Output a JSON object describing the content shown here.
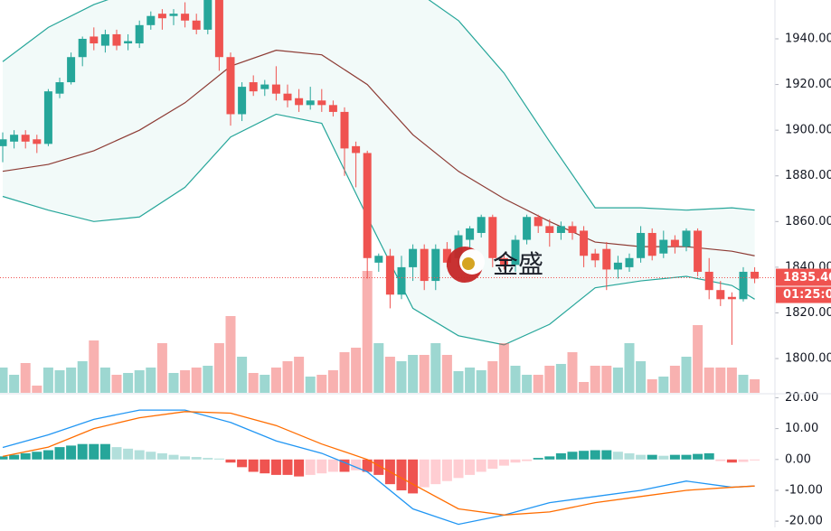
{
  "chart_data": {
    "type": "candlestick",
    "candles": [
      [
        1893,
        1899,
        1886,
        1896
      ],
      [
        1895,
        1900,
        1892,
        1898
      ],
      [
        1898,
        1900,
        1892,
        1895
      ],
      [
        1896,
        1898,
        1890,
        1894
      ],
      [
        1894,
        1918,
        1893,
        1917
      ],
      [
        1916,
        1923,
        1914,
        1921
      ],
      [
        1921,
        1934,
        1920,
        1932
      ],
      [
        1932,
        1941,
        1928,
        1940
      ],
      [
        1941,
        1945,
        1935,
        1938
      ],
      [
        1937,
        1944,
        1934,
        1942
      ],
      [
        1942,
        1944,
        1935,
        1937
      ],
      [
        1938,
        1942,
        1935,
        1939
      ],
      [
        1938,
        1948,
        1936,
        1946
      ],
      [
        1946,
        1952,
        1944,
        1950
      ],
      [
        1951,
        1953,
        1944,
        1949
      ],
      [
        1950,
        1953,
        1946,
        1951
      ],
      [
        1951,
        1956,
        1945,
        1948
      ],
      [
        1948,
        1951,
        1942,
        1944
      ],
      [
        1944,
        1957,
        1942,
        1957
      ],
      [
        1957,
        1957,
        1926,
        1932
      ],
      [
        1932,
        1934,
        1902,
        1907
      ],
      [
        1907,
        1921,
        1904,
        1919
      ],
      [
        1921,
        1924,
        1915,
        1917
      ],
      [
        1918,
        1922,
        1915,
        1920
      ],
      [
        1920,
        1928,
        1913,
        1916
      ],
      [
        1916,
        1920,
        1910,
        1913
      ],
      [
        1914,
        1918,
        1908,
        1911
      ],
      [
        1911,
        1919,
        1909,
        1913
      ],
      [
        1913,
        1918,
        1908,
        1911
      ],
      [
        1911,
        1913,
        1906,
        1908
      ],
      [
        1908,
        1910,
        1880,
        1892
      ],
      [
        1893,
        1895,
        1875,
        1890
      ],
      [
        1890,
        1891,
        1835,
        1844
      ],
      [
        1842,
        1846,
        1838,
        1845
      ],
      [
        1845,
        1848,
        1822,
        1828
      ],
      [
        1828,
        1845,
        1826,
        1840
      ],
      [
        1840,
        1850,
        1834,
        1848
      ],
      [
        1848,
        1850,
        1830,
        1834
      ],
      [
        1834,
        1850,
        1830,
        1848
      ],
      [
        1848,
        1851,
        1840,
        1842
      ],
      [
        1844,
        1856,
        1840,
        1854
      ],
      [
        1852,
        1858,
        1848,
        1857
      ],
      [
        1855,
        1863,
        1853,
        1862
      ],
      [
        1862,
        1863,
        1840,
        1844
      ],
      [
        1844,
        1846,
        1839,
        1841
      ],
      [
        1841,
        1854,
        1838,
        1852
      ],
      [
        1852,
        1863,
        1850,
        1862
      ],
      [
        1862,
        1863,
        1855,
        1858
      ],
      [
        1858,
        1861,
        1849,
        1855
      ],
      [
        1855,
        1860,
        1852,
        1858
      ],
      [
        1858,
        1860,
        1852,
        1855
      ],
      [
        1856,
        1858,
        1840,
        1845
      ],
      [
        1846,
        1848,
        1840,
        1843
      ],
      [
        1848,
        1851,
        1830,
        1839
      ],
      [
        1839,
        1845,
        1835,
        1842
      ],
      [
        1840,
        1846,
        1838,
        1844
      ],
      [
        1844,
        1858,
        1842,
        1855
      ],
      [
        1855,
        1857,
        1843,
        1845
      ],
      [
        1846,
        1856,
        1844,
        1852
      ],
      [
        1852,
        1854,
        1846,
        1849
      ],
      [
        1849,
        1857,
        1847,
        1856
      ],
      [
        1856,
        1857,
        1836,
        1838
      ],
      [
        1838,
        1844,
        1826,
        1830
      ],
      [
        1830,
        1834,
        1823,
        1826
      ],
      [
        1827,
        1829,
        1806,
        1826
      ],
      [
        1826,
        1840,
        1825,
        1838
      ],
      [
        1838,
        1840,
        1833,
        1835
      ]
    ],
    "volume": [
      28,
      20,
      33,
      8,
      28,
      25,
      28,
      35,
      58,
      28,
      20,
      22,
      25,
      28,
      55,
      22,
      25,
      28,
      30,
      55,
      85,
      40,
      22,
      20,
      28,
      35,
      40,
      18,
      20,
      25,
      45,
      50,
      135,
      55,
      40,
      35,
      42,
      42,
      55,
      42,
      24,
      28,
      25,
      35,
      55,
      30,
      20,
      20,
      30,
      32,
      45,
      12,
      30,
      30,
      28,
      55,
      35,
      15,
      18,
      30,
      40,
      75,
      28,
      28,
      28,
      20,
      15
    ],
    "bands": {
      "x": [
        0,
        4,
        8,
        12,
        16,
        20,
        24,
        28,
        32,
        36,
        40,
        44,
        48,
        52,
        56,
        60,
        64,
        66
      ],
      "upper": [
        1930,
        1945,
        1955,
        1962,
        1966,
        1968,
        1968,
        1967,
        1965,
        1962,
        1948,
        1925,
        1895,
        1866,
        1866,
        1865,
        1866,
        1865
      ],
      "middle": [
        1882,
        1885,
        1891,
        1900,
        1912,
        1928,
        1935,
        1933,
        1920,
        1898,
        1882,
        1870,
        1860,
        1851,
        1849,
        1849,
        1847,
        1845
      ],
      "lower": [
        1871,
        1865,
        1860,
        1862,
        1875,
        1897,
        1907,
        1903,
        1862,
        1822,
        1810,
        1806,
        1815,
        1831,
        1834,
        1836,
        1832,
        1826
      ]
    },
    "ylim": [
      1785,
      1957
    ],
    "yticks": [
      {
        "value": 1800,
        "label": "1800.00"
      },
      {
        "value": 1820,
        "label": "1820.00"
      },
      {
        "value": 1840,
        "label": "1840.00"
      },
      {
        "value": 1860,
        "label": "1860.00"
      },
      {
        "value": 1880,
        "label": "1880.00"
      },
      {
        "value": 1900,
        "label": "1900.00"
      },
      {
        "value": 1920,
        "label": "1920.00"
      },
      {
        "value": 1940,
        "label": "1940.00"
      }
    ],
    "last_price": {
      "value": 1835.4,
      "label": "1835.40"
    },
    "countdown": "01:25:00",
    "watermark": "金盛",
    "macd": {
      "hist": [
        1,
        1.5,
        2,
        2.5,
        3,
        4,
        4.5,
        5,
        5,
        5,
        4,
        3.5,
        3,
        2.5,
        2,
        1.5,
        1,
        0.8,
        0.5,
        0.3,
        -1,
        -2.5,
        -4,
        -4.5,
        -5,
        -5,
        -5.5,
        -5,
        -4.5,
        -4,
        -4,
        -3.5,
        -4,
        -5,
        -8,
        -10,
        -11,
        -9,
        -8,
        -7,
        -6,
        -5,
        -4,
        -3,
        -2,
        -1,
        -0.5,
        0.5,
        1,
        2,
        2.5,
        2.8,
        3,
        3,
        2.5,
        2,
        1.5,
        1.5,
        1.2,
        1.5,
        1.5,
        1.8,
        2,
        -0.5,
        -1,
        -0.8,
        -0.3
      ],
      "dif": [
        3.9,
        8,
        13,
        16,
        16,
        12,
        6,
        2,
        -4,
        -16,
        -21,
        -18,
        -14,
        -12,
        -10,
        -7,
        -9,
        -8.6
      ],
      "dea": [
        1,
        4,
        10,
        13.5,
        15.5,
        15,
        11,
        5,
        0,
        -8,
        -16,
        -18,
        -17,
        -14,
        -12,
        -10,
        -9,
        -8.6
      ],
      "ylim": [
        -22,
        21
      ],
      "yticks": [
        {
          "value": -20,
          "label": "-20.00"
        },
        {
          "value": -10,
          "label": "-10.00"
        },
        {
          "value": 0,
          "label": "0.00"
        },
        {
          "value": 10,
          "label": "10.00"
        },
        {
          "value": 20,
          "label": "20.00"
        }
      ]
    },
    "colors": {
      "up": "#26a69a",
      "down": "#ef5350",
      "band": "#26a69a",
      "middle": "#8d3b34",
      "dif": "#2196f3",
      "dea": "#ff6d00"
    }
  }
}
